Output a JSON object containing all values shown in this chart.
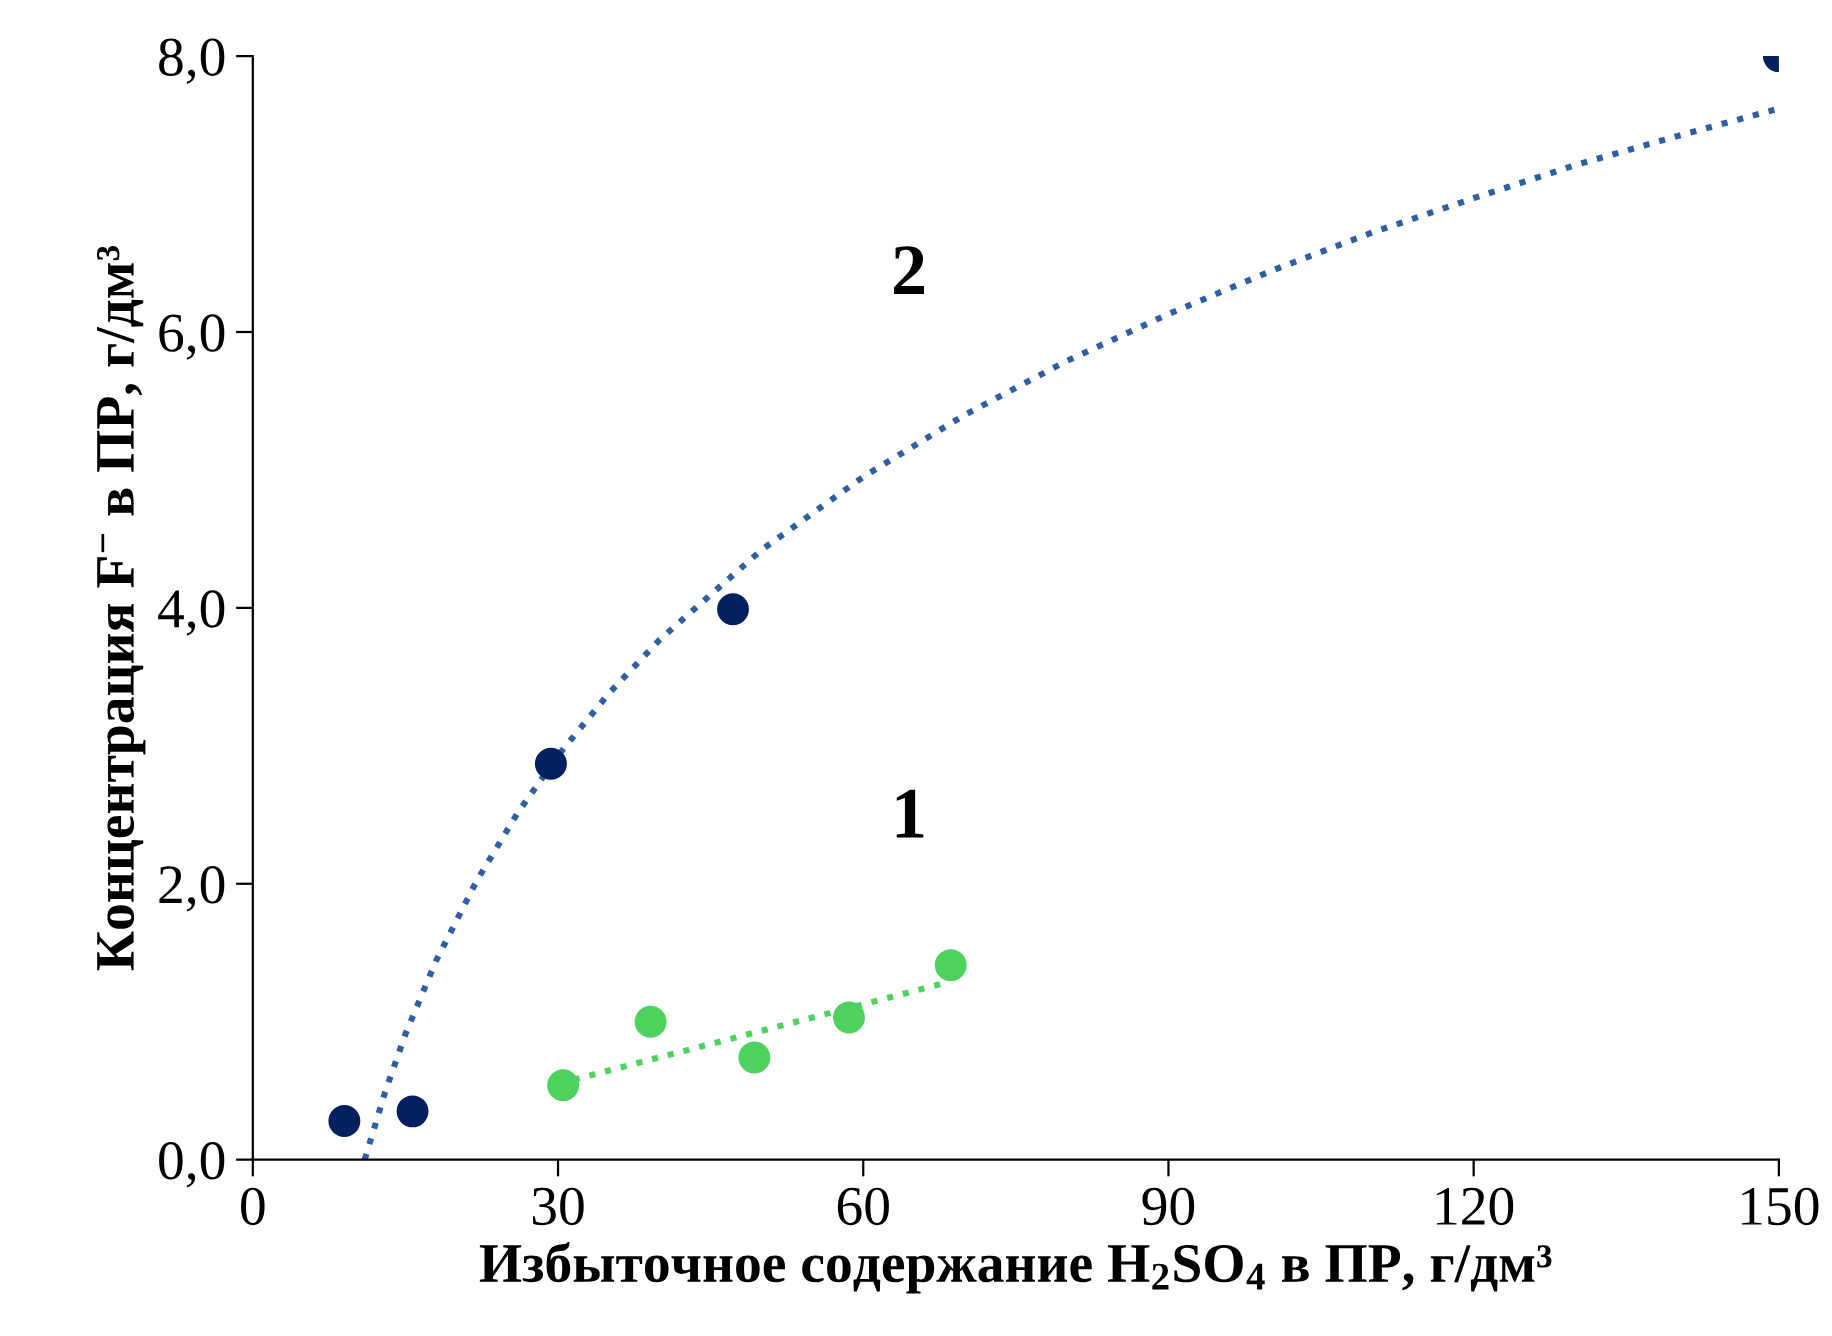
{
  "chart_data": {
    "type": "scatter",
    "xlabel": "Избыточное содержание H$_{2}$SO$_{4}$ в ПР, г/дм³",
    "ylabel": "Концентрация F$^{−}$ в ПР, г/дм³",
    "series": [
      {
        "color": "#002060",
        "marker": "circle",
        "x": [
          9.0,
          15.7,
          29.3,
          47.2,
          150
        ],
        "values": [
          0.28,
          0.35,
          2.87,
          3.99,
          8.0
        ]
      },
      {
        "color": "#4ed25e",
        "marker": "circle",
        "x": [
          30.5,
          39.1,
          49.3,
          58.6,
          68.6
        ],
        "values": [
          0.54,
          1.0,
          0.74,
          1.03,
          1.41
        ]
      },
      {
        "type": "line",
        "name": "2",
        "color": "#2e5fa3",
        "line_style": "dotted",
        "marker": "none",
        "x": [
          11,
          13,
          15,
          18,
          22,
          26,
          30,
          35,
          40,
          50,
          60,
          70,
          80,
          90,
          100,
          110,
          120,
          130,
          140,
          150
        ],
        "values": [
          0.0,
          0.49,
          0.91,
          1.44,
          2.02,
          2.51,
          2.93,
          3.38,
          3.77,
          4.42,
          4.95,
          5.4,
          5.79,
          6.13,
          6.44,
          6.72,
          6.97,
          7.21,
          7.42,
          7.62
        ]
      },
      {
        "type": "line",
        "name": "1",
        "color": "#4ed25e",
        "line_style": "dotted",
        "marker": "none",
        "x": [
          30,
          68
        ],
        "values": [
          0.55,
          1.28
        ]
      }
    ],
    "xlim": [
      0,
      150
    ],
    "xticks": [
      0,
      30,
      60,
      90,
      120,
      150
    ],
    "ylim": [
      0,
      8
    ],
    "yticks": [
      {
        "value": 0,
        "label": "0,0"
      },
      {
        "value": 2,
        "label": "2,0"
      },
      {
        "value": 4,
        "label": "4,0"
      },
      {
        "value": 6,
        "label": "6,0"
      },
      {
        "value": 8,
        "label": "8,0"
      }
    ],
    "grid": false,
    "legend": false
  }
}
